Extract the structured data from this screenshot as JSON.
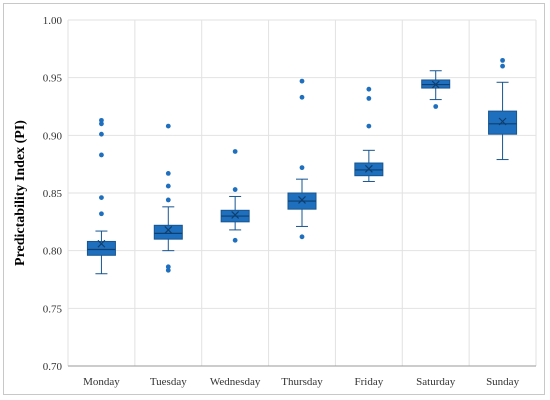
{
  "chart_data": {
    "type": "box",
    "title": "",
    "xlabel": "",
    "ylabel": "Predictability Index (PI)",
    "ylim": [
      0.7,
      1.0
    ],
    "yticks": [
      "0.70",
      "0.75",
      "0.80",
      "0.85",
      "0.90",
      "0.95",
      "1.00"
    ],
    "grid": true,
    "categories": [
      "Monday",
      "Tuesday",
      "Wednesday",
      "Thursday",
      "Friday",
      "Saturday",
      "Sunday"
    ],
    "boxes": [
      {
        "min": 0.78,
        "q1": 0.796,
        "median": 0.801,
        "q3": 0.808,
        "max": 0.817,
        "mean": 0.806,
        "outliers": [
          0.832,
          0.846,
          0.883,
          0.901,
          0.91,
          0.913
        ]
      },
      {
        "min": 0.8,
        "q1": 0.81,
        "median": 0.815,
        "q3": 0.822,
        "max": 0.838,
        "mean": 0.818,
        "outliers": [
          0.783,
          0.786,
          0.844,
          0.856,
          0.867,
          0.908
        ]
      },
      {
        "min": 0.818,
        "q1": 0.825,
        "median": 0.83,
        "q3": 0.835,
        "max": 0.847,
        "mean": 0.831,
        "outliers": [
          0.809,
          0.853,
          0.886
        ]
      },
      {
        "min": 0.821,
        "q1": 0.836,
        "median": 0.843,
        "q3": 0.85,
        "max": 0.862,
        "mean": 0.844,
        "outliers": [
          0.812,
          0.872,
          0.933,
          0.947
        ]
      },
      {
        "min": 0.86,
        "q1": 0.865,
        "median": 0.87,
        "q3": 0.876,
        "max": 0.887,
        "mean": 0.871,
        "outliers": [
          0.908,
          0.932,
          0.94
        ]
      },
      {
        "min": 0.931,
        "q1": 0.941,
        "median": 0.944,
        "q3": 0.948,
        "max": 0.956,
        "mean": 0.944,
        "outliers": [
          0.925
        ]
      },
      {
        "min": 0.879,
        "q1": 0.901,
        "median": 0.91,
        "q3": 0.921,
        "max": 0.946,
        "mean": 0.912,
        "outliers": [
          0.96,
          0.965
        ]
      }
    ],
    "colors": {
      "box": "#1f6fbf",
      "box_edge": "#17558f",
      "grid": "#e2e2e2",
      "axis": "#999999"
    }
  }
}
